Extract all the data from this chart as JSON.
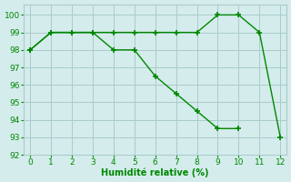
{
  "line1_x": [
    0,
    1,
    2,
    3,
    4,
    5,
    6,
    7,
    8,
    9,
    10,
    11,
    12
  ],
  "line1_y": [
    98,
    99,
    99,
    99,
    99,
    99,
    99,
    99,
    99,
    100,
    100,
    99,
    93
  ],
  "line2_x": [
    0,
    1,
    2,
    3,
    4,
    5,
    6,
    7,
    8,
    9,
    10
  ],
  "line2_y": [
    98,
    99,
    99,
    99,
    98,
    98,
    96.5,
    95.5,
    94.5,
    93.5,
    93.5
  ],
  "line_color": "#008800",
  "bg_color": "#d4ecec",
  "grid_color": "#aacccc",
  "xlabel": "Humidité relative (%)",
  "xlabel_color": "#008800",
  "tick_color": "#008800",
  "xlim": [
    -0.3,
    12.3
  ],
  "ylim": [
    92,
    100.6
  ],
  "yticks": [
    92,
    93,
    94,
    95,
    96,
    97,
    98,
    99,
    100
  ],
  "xticks": [
    0,
    1,
    2,
    3,
    4,
    5,
    6,
    7,
    8,
    9,
    10,
    11,
    12
  ],
  "marker": "+",
  "markersize": 5,
  "linewidth": 1.0
}
